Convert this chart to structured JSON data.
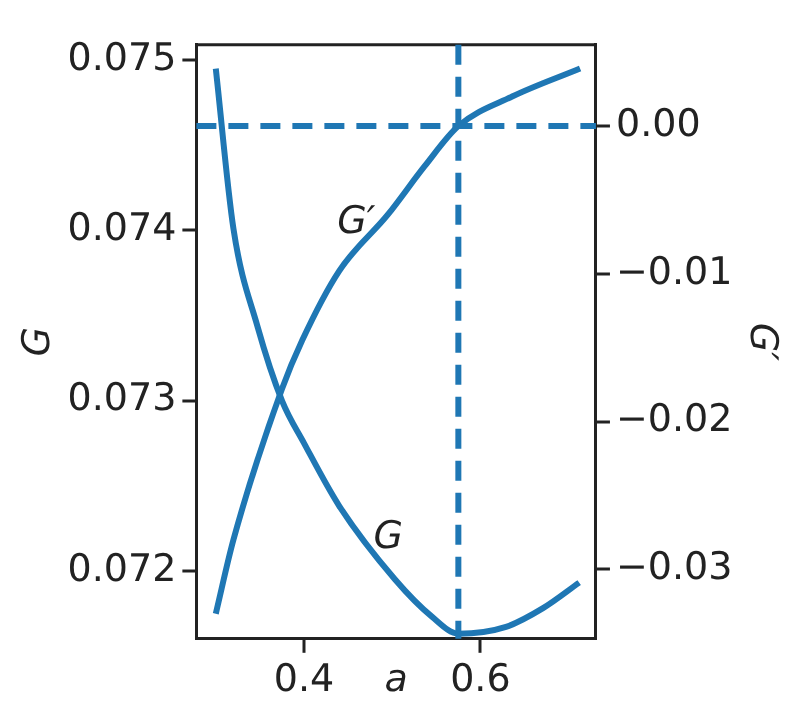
{
  "chart_data": {
    "type": "line",
    "xlabel": "a",
    "ylabel": "G",
    "y2label": "G′",
    "xlim": [
      0.278,
      0.731
    ],
    "xticks": [
      0.4,
      0.6
    ],
    "ylim": [
      0.0716,
      0.07509
    ],
    "yticks": [
      0.072,
      0.073,
      0.074,
      0.075
    ],
    "y2lim": [
      -0.0347,
      0.0055
    ],
    "y2ticks": [
      {
        "value": -0.03,
        "label": "−0.03"
      },
      {
        "value": -0.02,
        "label": "−0.02"
      },
      {
        "value": -0.01,
        "label": "−0.01"
      },
      {
        "value": 0,
        "label": "0.00"
      }
    ],
    "grid": false,
    "legend": false,
    "marker": "none",
    "line_style": "solid",
    "series": [
      {
        "color": "#1f77b4",
        "x": [
          0.3,
          0.32,
          0.347,
          0.375,
          0.4,
          0.44,
          0.503,
          0.545,
          0.575,
          0.629,
          0.671,
          0.712
        ],
        "values": [
          0.07495,
          0.07401,
          0.07344,
          0.073,
          0.07275,
          0.07238,
          0.07195,
          0.07173,
          0.07163,
          0.07167,
          0.07178,
          0.07193
        ]
      },
      {
        "color": "#1f77b4",
        "axis": "y2",
        "x": [
          0.3,
          0.32,
          0.375,
          0.398,
          0.44,
          0.495,
          0.537,
          0.575,
          0.636,
          0.713
        ],
        "values": [
          -0.033,
          -0.028,
          -0.0178,
          -0.0145,
          -0.0098,
          -0.006,
          -0.0027,
          0,
          0.002,
          0.0039
        ]
      }
    ],
    "ref_lines": [
      {
        "axis": "x",
        "value": 0.575,
        "color": "#1f77b4",
        "line_style": "dashed"
      },
      {
        "axis": "y2",
        "value": 0,
        "color": "#1f77b4",
        "line_style": "dashed"
      }
    ],
    "annotations": [
      "G′",
      "G"
    ]
  }
}
